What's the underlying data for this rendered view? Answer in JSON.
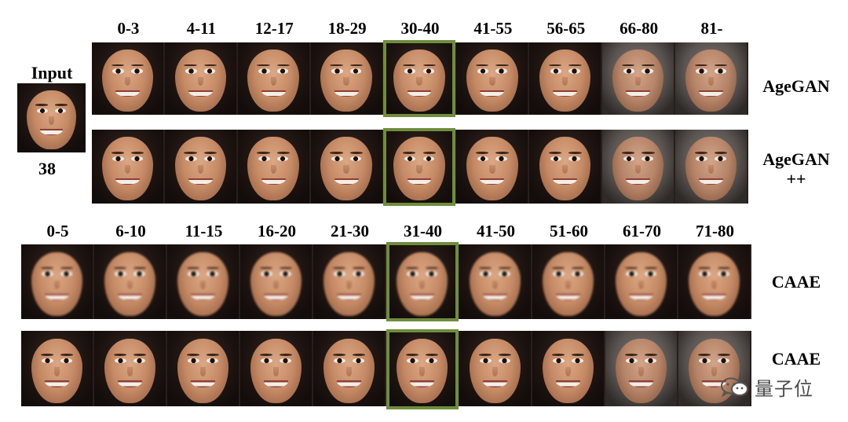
{
  "input": {
    "label": "Input",
    "age": "38"
  },
  "top_age_groups": [
    "0-3",
    "4-11",
    "12-17",
    "18-29",
    "30-40",
    "41-55",
    "56-65",
    "66-80",
    "81-"
  ],
  "bottom_age_groups": [
    "0-5",
    "6-10",
    "11-15",
    "16-20",
    "21-30",
    "31-40",
    "41-50",
    "51-60",
    "61-70",
    "71-80"
  ],
  "rows": [
    {
      "label_line1": "AgeGAN",
      "label_line2": ""
    },
    {
      "label_line1": "AgeGAN",
      "label_line2": "++"
    },
    {
      "label_line1": "CAAE",
      "label_line2": ""
    },
    {
      "label_line1": "CAAE",
      "label_line2": ""
    }
  ],
  "watermark": {
    "text": "量子位",
    "icon": "wechat-icon"
  },
  "colors": {
    "highlight": "#6f8d3c"
  }
}
